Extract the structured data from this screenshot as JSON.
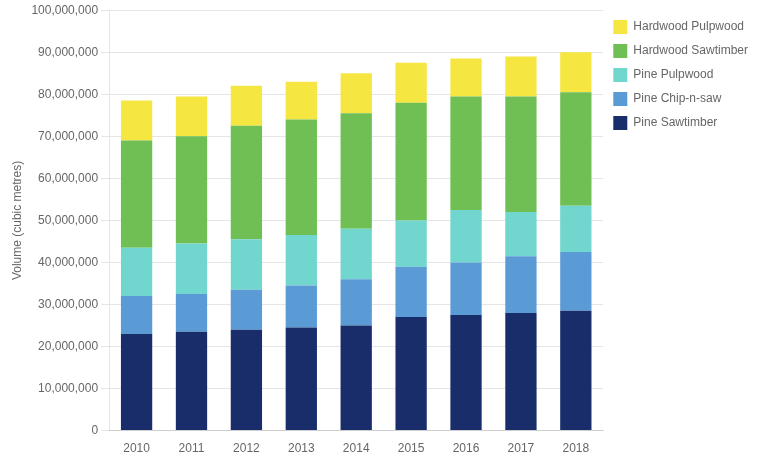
{
  "chart_data": {
    "type": "bar",
    "stacked": true,
    "ylabel": "Volume (cubic metres)",
    "categories": [
      "2010",
      "2011",
      "2012",
      "2013",
      "2014",
      "2015",
      "2016",
      "2017",
      "2018"
    ],
    "series": [
      {
        "name": "Pine Sawtimber",
        "color": "#1a2d6b",
        "values": [
          23000000,
          23500000,
          24000000,
          24500000,
          25000000,
          27000000,
          27500000,
          28000000,
          28500000
        ]
      },
      {
        "name": "Pine Chip-n-saw",
        "color": "#5b9bd5",
        "values": [
          9000000,
          9000000,
          9500000,
          10000000,
          11000000,
          12000000,
          12500000,
          13500000,
          14000000
        ]
      },
      {
        "name": "Pine Pulpwood",
        "color": "#70d6ce",
        "values": [
          11500000,
          12000000,
          12000000,
          12000000,
          12000000,
          11000000,
          12500000,
          10500000,
          11000000
        ]
      },
      {
        "name": "Hardwood Sawtimber",
        "color": "#70bf54",
        "values": [
          25500000,
          25500000,
          27000000,
          27500000,
          27500000,
          28000000,
          27000000,
          27500000,
          27000000
        ]
      },
      {
        "name": "Hardwood Pulpwood",
        "color": "#f5e642",
        "values": [
          9500000,
          9500000,
          9500000,
          9000000,
          9500000,
          9500000,
          9000000,
          9500000,
          9500000
        ]
      }
    ],
    "ylim": [
      0,
      100000000
    ],
    "yticks": [
      0,
      {
        "value": 10000000,
        "label": "10,000,000"
      },
      {
        "value": 20000000,
        "label": "20,000,000"
      },
      {
        "value": 30000000,
        "label": "30,000,000"
      },
      {
        "value": 40000000,
        "label": "40,000,000"
      },
      {
        "value": 50000000,
        "label": "50,000,000"
      },
      {
        "value": 60000000,
        "label": "60,000,000"
      },
      {
        "value": 70000000,
        "label": "70,000,000"
      },
      {
        "value": 80000000,
        "label": "80,000,000"
      },
      {
        "value": 90000000,
        "label": "90,000,000"
      },
      {
        "value": 100000000,
        "label": "100,000,000"
      }
    ],
    "grid": true,
    "legend": "right"
  }
}
